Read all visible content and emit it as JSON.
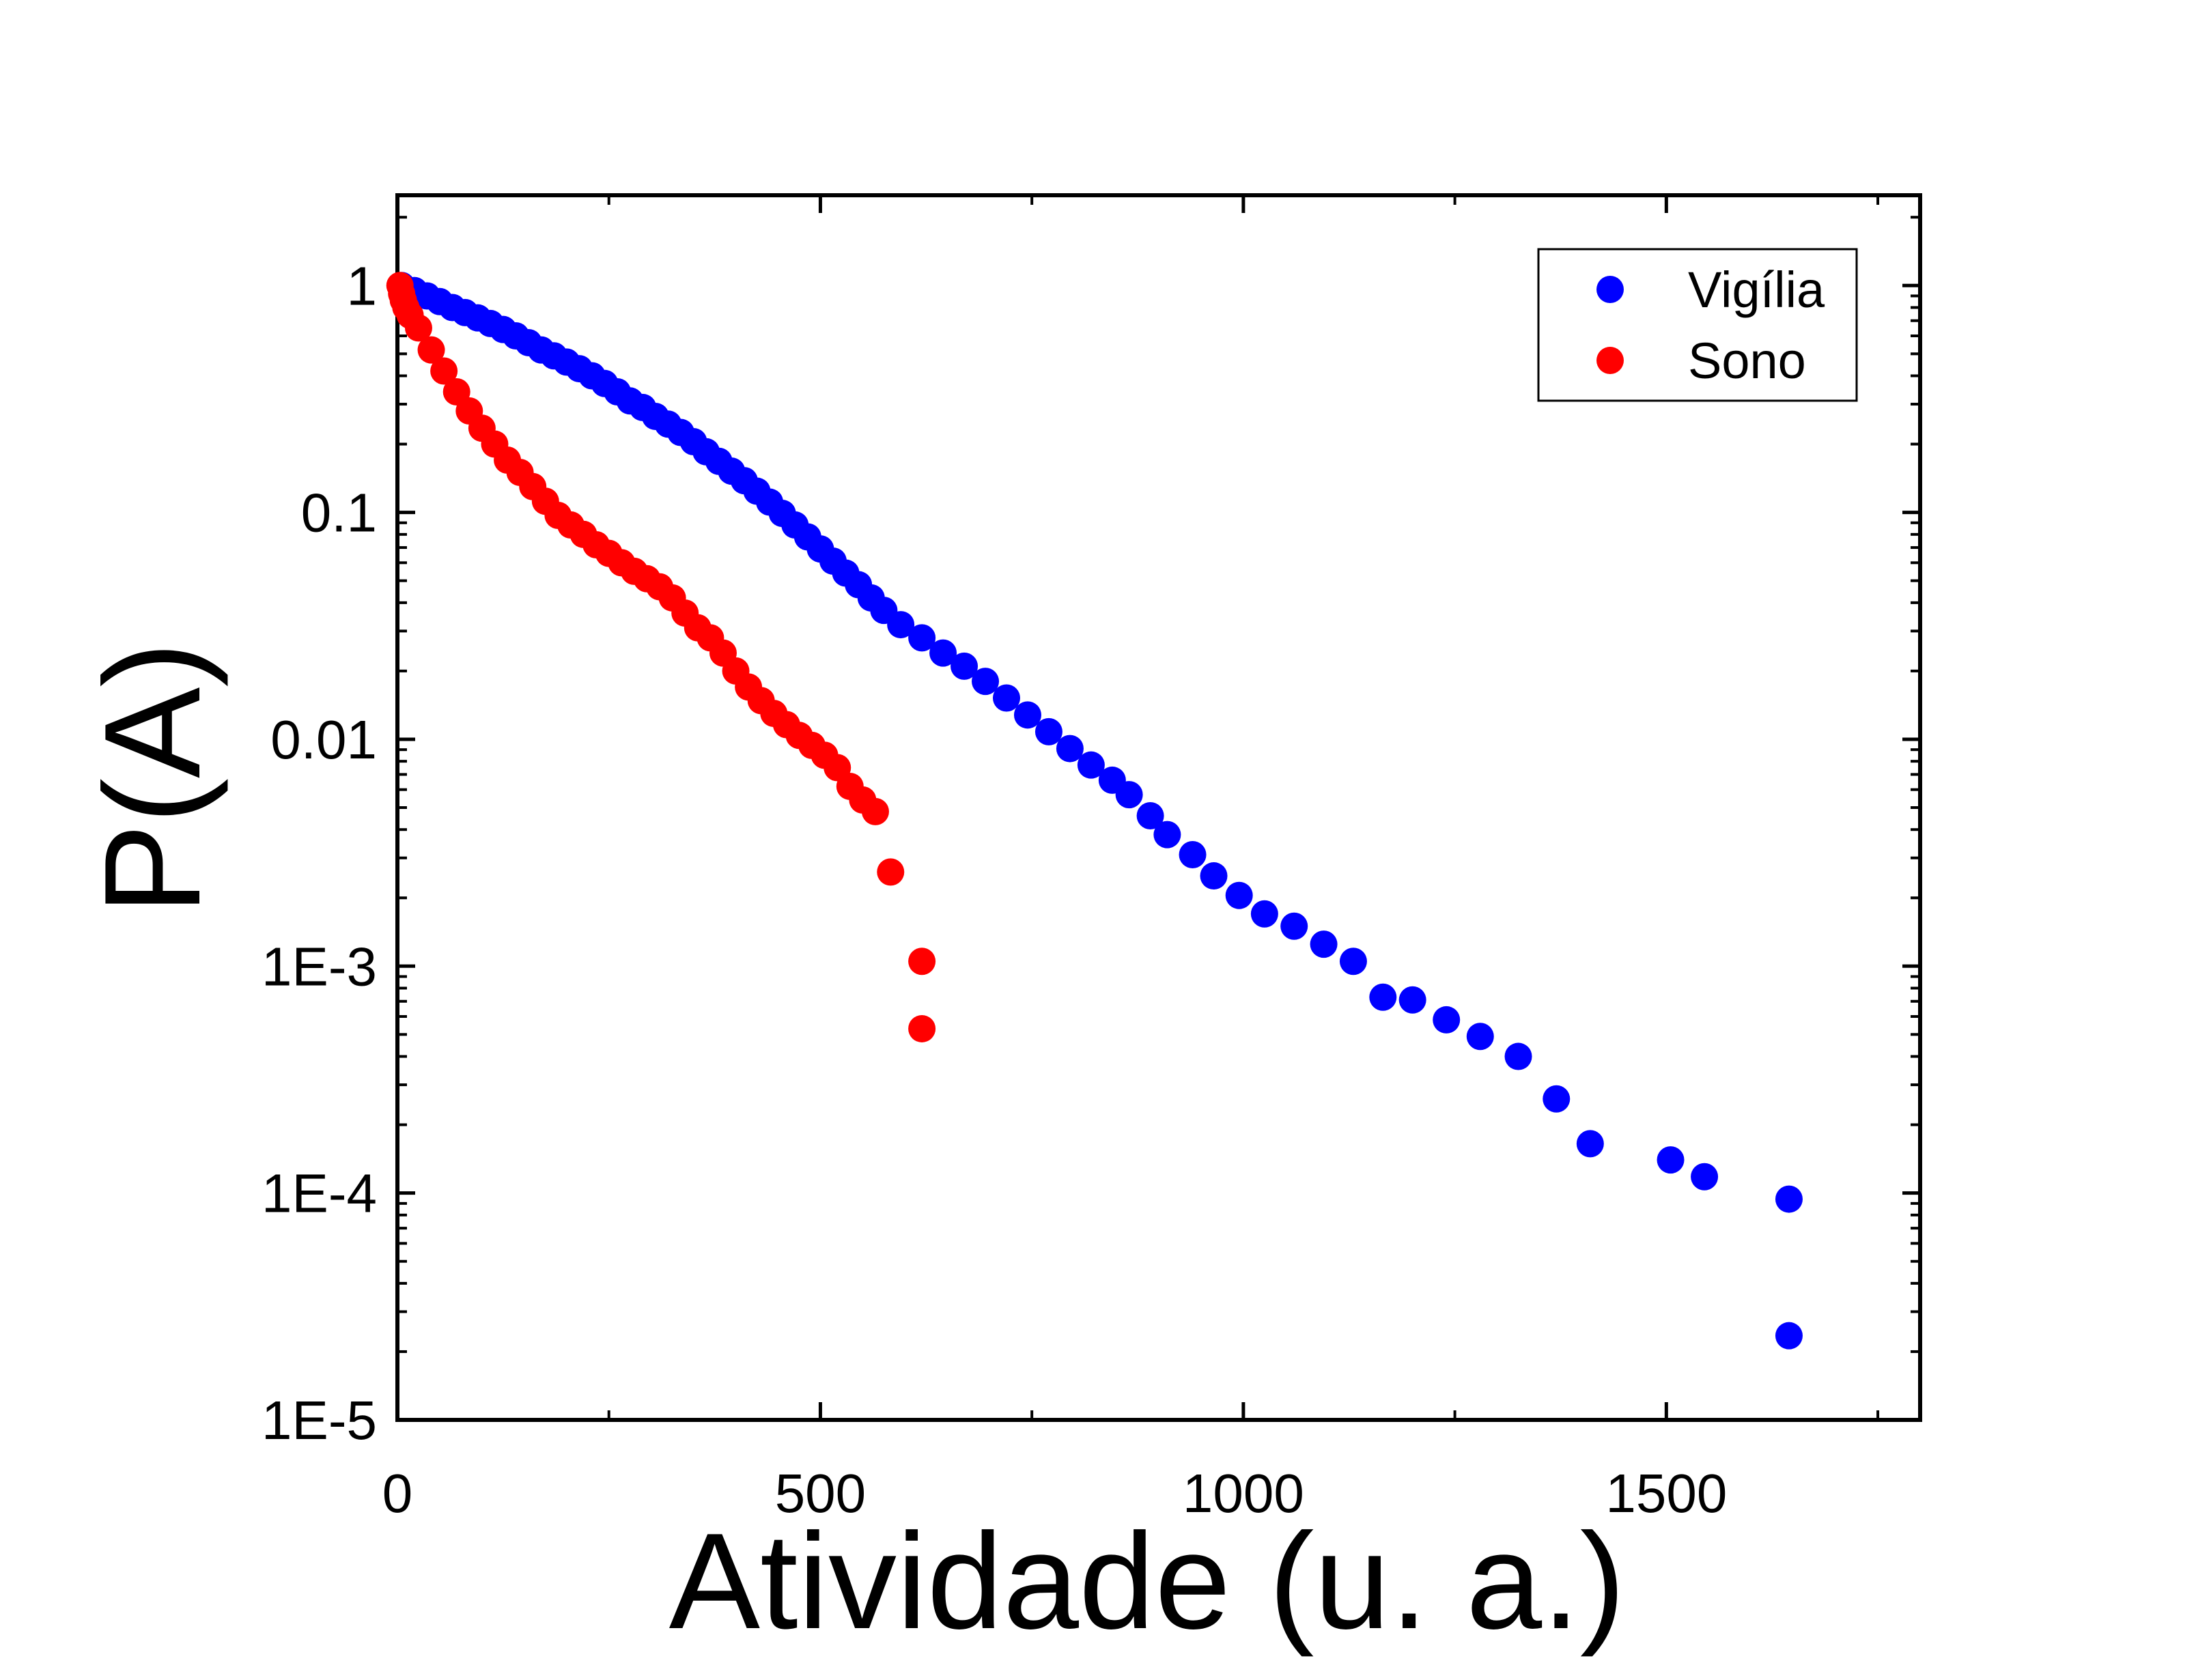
{
  "chart_data": {
    "type": "scatter",
    "xlabel": "Atividade (u. a.)",
    "ylabel": "P(A)",
    "xscale": "linear",
    "yscale": "log",
    "xlim": [
      0,
      1800
    ],
    "ylim": [
      1e-05,
      2.5
    ],
    "xticks": [
      0,
      500,
      1000,
      1500
    ],
    "xtick_labels": [
      "0",
      "500",
      "1000",
      "1500"
    ],
    "yticks": [
      1e-05,
      0.0001,
      0.001,
      0.01,
      0.1,
      1
    ],
    "ytick_labels": [
      "1E-5",
      "1E-4",
      "1E-3",
      "0.01",
      "0.1",
      "1"
    ],
    "grid": false,
    "legend_position": "top-right",
    "series": [
      {
        "name": "Vigília",
        "color": "#0000ff",
        "points": [
          [
            5,
            1.0
          ],
          [
            20,
            0.95
          ],
          [
            35,
            0.9
          ],
          [
            50,
            0.85
          ],
          [
            65,
            0.8
          ],
          [
            80,
            0.76
          ],
          [
            95,
            0.72
          ],
          [
            110,
            0.68
          ],
          [
            125,
            0.64
          ],
          [
            140,
            0.6
          ],
          [
            155,
            0.56
          ],
          [
            170,
            0.52
          ],
          [
            185,
            0.49
          ],
          [
            200,
            0.46
          ],
          [
            215,
            0.43
          ],
          [
            230,
            0.4
          ],
          [
            245,
            0.37
          ],
          [
            260,
            0.34
          ],
          [
            275,
            0.31
          ],
          [
            290,
            0.29
          ],
          [
            305,
            0.265
          ],
          [
            320,
            0.245
          ],
          [
            335,
            0.225
          ],
          [
            350,
            0.205
          ],
          [
            365,
            0.185
          ],
          [
            380,
            0.168
          ],
          [
            395,
            0.152
          ],
          [
            410,
            0.138
          ],
          [
            425,
            0.124
          ],
          [
            440,
            0.111
          ],
          [
            455,
            0.099
          ],
          [
            470,
            0.088
          ],
          [
            485,
            0.078
          ],
          [
            500,
            0.069
          ],
          [
            515,
            0.061
          ],
          [
            530,
            0.054
          ],
          [
            545,
            0.048
          ],
          [
            560,
            0.042
          ],
          [
            575,
            0.037
          ],
          [
            595,
            0.032
          ],
          [
            620,
            0.028
          ],
          [
            645,
            0.024
          ],
          [
            670,
            0.021
          ],
          [
            695,
            0.018
          ],
          [
            720,
            0.0152
          ],
          [
            745,
            0.0128
          ],
          [
            770,
            0.0108
          ],
          [
            795,
            0.0091
          ],
          [
            820,
            0.0077
          ],
          [
            845,
            0.0066
          ],
          [
            865,
            0.0057
          ],
          [
            890,
            0.0046
          ],
          [
            910,
            0.0038
          ],
          [
            940,
            0.0031
          ],
          [
            965,
            0.0025
          ],
          [
            995,
            0.00205
          ],
          [
            1025,
            0.0017
          ],
          [
            1060,
            0.0015
          ],
          [
            1095,
            0.00125
          ],
          [
            1130,
            0.00105
          ],
          [
            1165,
            0.00073
          ],
          [
            1200,
            0.00071
          ],
          [
            1240,
            0.00058
          ],
          [
            1280,
            0.00049
          ],
          [
            1325,
            0.0004
          ],
          [
            1370,
            0.00026
          ],
          [
            1410,
            0.000165
          ],
          [
            1505,
            0.00014
          ],
          [
            1545,
            0.000118
          ],
          [
            1645,
            9.4e-05
          ],
          [
            1645,
            2.35e-05
          ]
        ]
      },
      {
        "name": "Sono",
        "color": "#ff0000",
        "points": [
          [
            3,
            1.0
          ],
          [
            5,
            0.92
          ],
          [
            7,
            0.86
          ],
          [
            10,
            0.8
          ],
          [
            15,
            0.74
          ],
          [
            25,
            0.65
          ],
          [
            40,
            0.52
          ],
          [
            55,
            0.42
          ],
          [
            70,
            0.34
          ],
          [
            85,
            0.28
          ],
          [
            100,
            0.235
          ],
          [
            115,
            0.2
          ],
          [
            130,
            0.17
          ],
          [
            145,
            0.15
          ],
          [
            160,
            0.13
          ],
          [
            175,
            0.112
          ],
          [
            190,
            0.097
          ],
          [
            205,
            0.088
          ],
          [
            220,
            0.08
          ],
          [
            235,
            0.072
          ],
          [
            250,
            0.066
          ],
          [
            265,
            0.06
          ],
          [
            280,
            0.055
          ],
          [
            295,
            0.051
          ],
          [
            310,
            0.047
          ],
          [
            325,
            0.042
          ],
          [
            340,
            0.036
          ],
          [
            355,
            0.031
          ],
          [
            370,
            0.028
          ],
          [
            385,
            0.024
          ],
          [
            400,
            0.02
          ],
          [
            415,
            0.017
          ],
          [
            430,
            0.0148
          ],
          [
            445,
            0.013
          ],
          [
            460,
            0.0116
          ],
          [
            475,
            0.0104
          ],
          [
            490,
            0.0094
          ],
          [
            505,
            0.0085
          ],
          [
            520,
            0.0075
          ],
          [
            535,
            0.0062
          ],
          [
            550,
            0.0054
          ],
          [
            565,
            0.0048
          ],
          [
            583,
            0.0026
          ],
          [
            620,
            0.00105
          ],
          [
            620,
            0.00053
          ]
        ]
      }
    ]
  }
}
